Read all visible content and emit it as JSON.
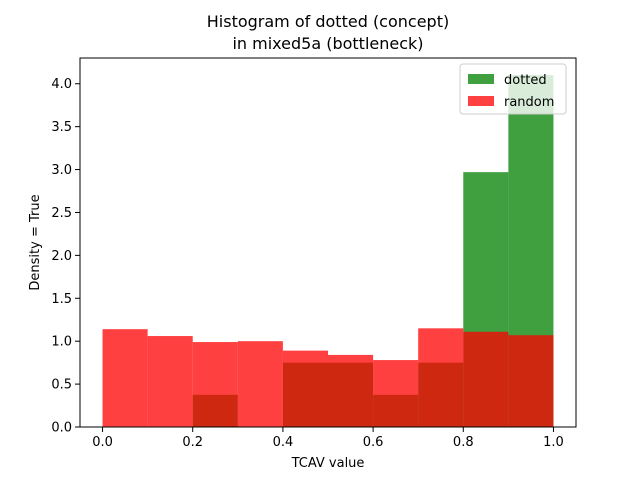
{
  "chart_data": {
    "type": "bar",
    "title_lines": [
      "Histogram of dotted (concept)",
      "in mixed5a (bottleneck)"
    ],
    "xlabel": "TCAV value",
    "ylabel": "Density = True",
    "xlim": [
      -0.05,
      1.05
    ],
    "ylim": [
      0,
      4.3
    ],
    "xticks": [
      "0.0",
      "0.2",
      "0.4",
      "0.6",
      "0.8",
      "1.0"
    ],
    "yticks": [
      "0.0",
      "0.5",
      "1.0",
      "1.5",
      "2.0",
      "2.5",
      "3.0",
      "3.5",
      "4.0"
    ],
    "legend_position": "top-right",
    "series": [
      {
        "name": "dotted",
        "color": "#008000",
        "alpha": 0.75,
        "bins": [
          {
            "x0": 0.2,
            "x1": 0.3,
            "value": 0.375
          },
          {
            "x0": 0.4,
            "x1": 0.5,
            "value": 0.75
          },
          {
            "x0": 0.5,
            "x1": 0.6,
            "value": 0.75
          },
          {
            "x0": 0.6,
            "x1": 0.7,
            "value": 0.375
          },
          {
            "x0": 0.7,
            "x1": 0.8,
            "value": 0.75
          },
          {
            "x0": 0.8,
            "x1": 0.9,
            "value": 2.97
          },
          {
            "x0": 0.9,
            "x1": 1.0,
            "value": 4.1
          }
        ]
      },
      {
        "name": "random",
        "color": "#ff0000",
        "alpha": 0.75,
        "bins": [
          {
            "x0": 0.0,
            "x1": 0.1,
            "value": 1.14
          },
          {
            "x0": 0.1,
            "x1": 0.2,
            "value": 1.06
          },
          {
            "x0": 0.2,
            "x1": 0.3,
            "value": 0.99
          },
          {
            "x0": 0.3,
            "x1": 0.4,
            "value": 1.0
          },
          {
            "x0": 0.4,
            "x1": 0.5,
            "value": 0.89
          },
          {
            "x0": 0.5,
            "x1": 0.6,
            "value": 0.84
          },
          {
            "x0": 0.6,
            "x1": 0.7,
            "value": 0.78
          },
          {
            "x0": 0.7,
            "x1": 0.8,
            "value": 1.15
          },
          {
            "x0": 0.8,
            "x1": 0.9,
            "value": 1.11
          },
          {
            "x0": 0.9,
            "x1": 1.0,
            "value": 1.07
          }
        ]
      }
    ]
  }
}
